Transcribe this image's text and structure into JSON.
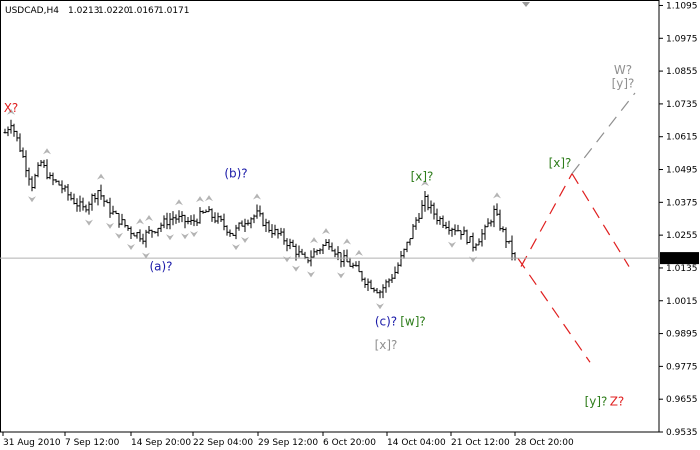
{
  "chart_data": {
    "type": "bar",
    "title": "USDCAD,H4",
    "header_values": [
      "1.0213",
      "1.0220",
      "1.0167",
      "1.0171"
    ],
    "current_price": 1.0171,
    "current_price_label": "1.0171",
    "ylim": [
      0.9535,
      1.1115
    ],
    "y_ticks": [
      "1.1095",
      "1.0975",
      "1.0855",
      "1.0735",
      "1.0615",
      "1.0495",
      "1.0375",
      "1.0255",
      "1.0135",
      "1.0015",
      "0.9895",
      "0.9775",
      "0.9655",
      "0.9535"
    ],
    "x_ticks": [
      "31 Aug 2010",
      "7 Sep 12:00",
      "14 Sep 20:00",
      "22 Sep 04:00",
      "29 Sep 12:00",
      "6 Oct 20:00",
      "14 Oct 04:00",
      "21 Oct 12:00",
      "28 Oct 20:00"
    ],
    "anchors": [
      {
        "t": 0,
        "y": 1.063
      },
      {
        "t": 2,
        "y": 1.067
      },
      {
        "t": 6,
        "y": 1.054
      },
      {
        "t": 9,
        "y": 1.044
      },
      {
        "t": 12,
        "y": 1.052
      },
      {
        "t": 15,
        "y": 1.046
      },
      {
        "t": 18,
        "y": 1.044
      },
      {
        "t": 22,
        "y": 1.039
      },
      {
        "t": 26,
        "y": 1.035
      },
      {
        "t": 31,
        "y": 1.042
      },
      {
        "t": 34,
        "y": 1.036
      },
      {
        "t": 38,
        "y": 1.031
      },
      {
        "t": 42,
        "y": 1.027
      },
      {
        "t": 46,
        "y": 1.025
      },
      {
        "t": 50,
        "y": 1.028
      },
      {
        "t": 56,
        "y": 1.032
      },
      {
        "t": 62,
        "y": 1.03
      },
      {
        "t": 67,
        "y": 1.034
      },
      {
        "t": 72,
        "y": 1.03
      },
      {
        "t": 76,
        "y": 1.026
      },
      {
        "t": 80,
        "y": 1.031
      },
      {
        "t": 84,
        "y": 1.033
      },
      {
        "t": 88,
        "y": 1.028
      },
      {
        "t": 92,
        "y": 1.025
      },
      {
        "t": 96,
        "y": 1.021
      },
      {
        "t": 100,
        "y": 1.016
      },
      {
        "t": 104,
        "y": 1.02
      },
      {
        "t": 108,
        "y": 1.023
      },
      {
        "t": 112,
        "y": 1.017
      },
      {
        "t": 116,
        "y": 1.014
      },
      {
        "t": 120,
        "y": 1.009
      },
      {
        "t": 125,
        "y": 1.005
      },
      {
        "t": 130,
        "y": 1.012
      },
      {
        "t": 134,
        "y": 1.022
      },
      {
        "t": 137,
        "y": 1.031
      },
      {
        "t": 140,
        "y": 1.038
      },
      {
        "t": 144,
        "y": 1.032
      },
      {
        "t": 148,
        "y": 1.029
      },
      {
        "t": 152,
        "y": 1.027
      },
      {
        "t": 156,
        "y": 1.022
      },
      {
        "t": 160,
        "y": 1.027
      },
      {
        "t": 163,
        "y": 1.034
      },
      {
        "t": 167,
        "y": 1.024
      },
      {
        "t": 170,
        "y": 1.0171
      }
    ],
    "forecast_lines": [
      {
        "points": [
          [
            171,
            1.017
          ],
          [
            195,
            0.979
          ]
        ],
        "color": "#e02020",
        "dash": "12,8"
      },
      {
        "points": [
          [
            172,
            1.014
          ],
          [
            189,
            1.048
          ]
        ],
        "color": "#e02020",
        "dash": "12,8"
      },
      {
        "points": [
          [
            189,
            1.048
          ],
          [
            208,
            1.014
          ]
        ],
        "color": "#e02020",
        "dash": "12,8"
      },
      {
        "points": [
          [
            189,
            1.048
          ],
          [
            210,
            1.0775
          ]
        ],
        "color": "#909090",
        "dash": "12,8"
      }
    ],
    "wave_labels": [
      {
        "text": "X?",
        "t": 2,
        "y": 1.0705,
        "color": "#e02020"
      },
      {
        "text": "(a)?",
        "t": 52,
        "y": 1.0125,
        "color": "#1a1aa8"
      },
      {
        "text": "(b)?",
        "t": 77,
        "y": 1.0465,
        "color": "#1a1aa8"
      },
      {
        "text": "[x]?",
        "t": 139,
        "y": 1.0455,
        "color": "#2e7d1b"
      },
      {
        "text": "(c)?",
        "t": 127,
        "y": 0.9925,
        "color": "#1a1aa8"
      },
      {
        "text": "[w]?",
        "t": 136,
        "y": 0.9925,
        "color": "#2e7d1b"
      },
      {
        "text": "[x]?",
        "t": 127,
        "y": 0.9838,
        "color": "#909090"
      },
      {
        "text": "[x]?",
        "t": 185,
        "y": 1.0505,
        "color": "#2e7d1b"
      },
      {
        "text": "W?",
        "t": 206,
        "y": 1.0845,
        "color": "#909090"
      },
      {
        "text": "[y]?",
        "t": 206,
        "y": 1.0795,
        "color": "#909090"
      },
      {
        "text": "[y]?",
        "t": 197,
        "y": 0.9632,
        "color": "#2e7d1b"
      },
      {
        "text": "Z?",
        "t": 204,
        "y": 0.9632,
        "color": "#e02020"
      }
    ]
  }
}
